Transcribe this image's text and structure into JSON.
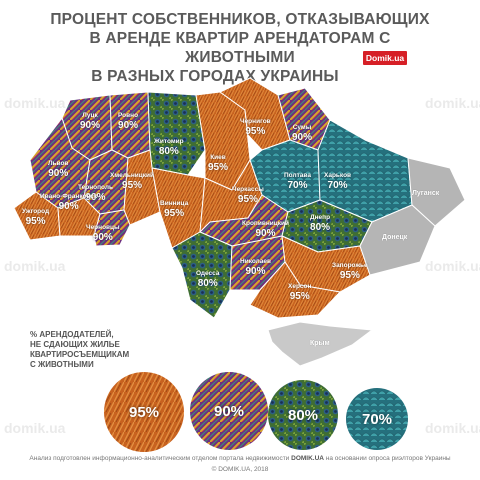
{
  "header": {
    "title_lines": [
      "ПРОЦЕНТ СОБСТВЕННИКОВ, ОТКАЗЫВАЮЩИХ",
      "В АРЕНДЕ КВАРТИР АРЕНДАТОРАМ С ЖИВОТНЫМИ",
      "В РАЗНЫХ ГОРОДАХ УКРАИНЫ"
    ],
    "brand": "Domik.ua"
  },
  "watermark": "domik.ua",
  "regions": [
    {
      "city": "Луцк",
      "value": "90%",
      "texture": "feather"
    },
    {
      "city": "Ровно",
      "value": "90%",
      "texture": "feather"
    },
    {
      "city": "Житомир",
      "value": "80%",
      "texture": "peacock"
    },
    {
      "city": "Чернигов",
      "value": "95%",
      "texture": "fur"
    },
    {
      "city": "Сумы",
      "value": "90%",
      "texture": "feather"
    },
    {
      "city": "Львов",
      "value": "90%",
      "texture": "feather"
    },
    {
      "city": "Тернополь",
      "value": "90%",
      "texture": "feather"
    },
    {
      "city": "Хмельницкий",
      "value": "95%",
      "texture": "fur"
    },
    {
      "city": "Киев",
      "value": "95%",
      "texture": "fur"
    },
    {
      "city": "Полтава",
      "value": "70%",
      "texture": "scales"
    },
    {
      "city": "Харьков",
      "value": "70%",
      "texture": "scales"
    },
    {
      "city": "Ужгород",
      "value": "95%",
      "texture": "fur"
    },
    {
      "city": "Ивано-Франковск",
      "value": "90%",
      "texture": "feather"
    },
    {
      "city": "Черновцы",
      "value": "90%",
      "texture": "feather"
    },
    {
      "city": "Винница",
      "value": "95%",
      "texture": "fur"
    },
    {
      "city": "Черкассы",
      "value": "95%",
      "texture": "fur"
    },
    {
      "city": "Кропивницкий",
      "value": "90%",
      "texture": "feather"
    },
    {
      "city": "Днепр",
      "value": "80%",
      "texture": "peacock"
    },
    {
      "city": "Одесса",
      "value": "80%",
      "texture": "peacock"
    },
    {
      "city": "Николаев",
      "value": "90%",
      "texture": "feather"
    },
    {
      "city": "Запорожье",
      "value": "95%",
      "texture": "fur"
    },
    {
      "city": "Херсон",
      "value": "95%",
      "texture": "fur"
    }
  ],
  "no_data_regions": [
    "Луганск",
    "Донецк",
    "Крым"
  ],
  "legend": {
    "title_lines": [
      "% АРЕНДОДАТЕЛЕЙ,",
      "НЕ СДАЮЩИХ ЖИЛЬЕ",
      "КВАРТИРОСЪЕМЩИКАМ",
      "С ЖИВОТНЫМИ"
    ],
    "items": [
      {
        "value": "95%",
        "texture": "fur"
      },
      {
        "value": "90%",
        "texture": "feather"
      },
      {
        "value": "80%",
        "texture": "peacock"
      },
      {
        "value": "70%",
        "texture": "scales"
      }
    ]
  },
  "footer": {
    "line1_prefix": "Анализ подготовлен информационно-аналитическим отделом портала недвижимости",
    "line1_site": "DOMIK.UA",
    "line1_suffix": "на основании опроса риэлторов Украины",
    "line2": "© DOMIK.UA, 2018"
  },
  "colors": {
    "fur": "#c8621f",
    "feather": "#6d2f7e",
    "peacock": "#4a7a3a",
    "scales": "#2f7f8c",
    "no_data": "#b5b5b5",
    "brand": "#d61f26",
    "title": "#5a5a5a"
  }
}
